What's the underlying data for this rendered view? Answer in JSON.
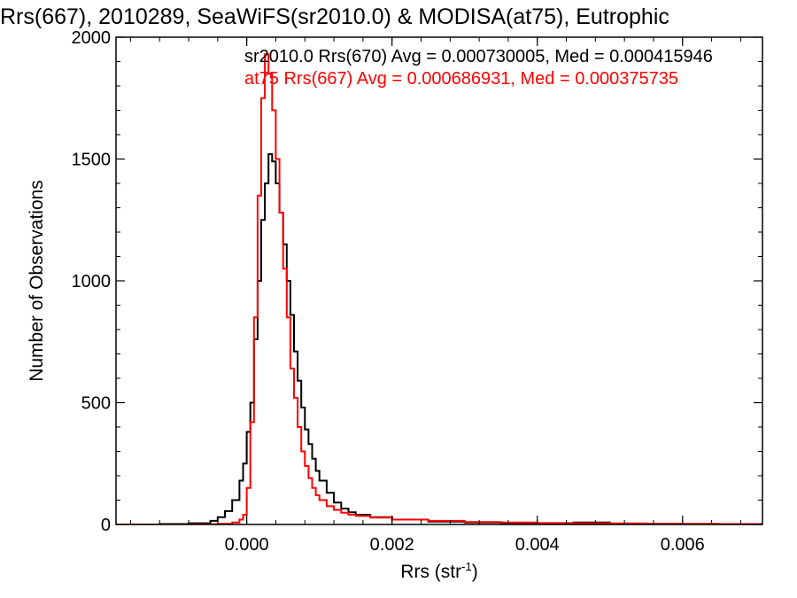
{
  "chart_data": {
    "type": "line",
    "title": "Rrs(667), 2010289, SeaWiFS(sr2010.0) & MODISA(at75), Eutrophic",
    "xlabel": "Rrs (str",
    "xlabel_sup": "-1",
    "xlabel_end": ")",
    "ylabel": "Number of Observations",
    "xlim": [
      -0.0018,
      0.0071
    ],
    "ylim": [
      0,
      2000
    ],
    "x_ticks": [
      0.0,
      0.002,
      0.004,
      0.006
    ],
    "x_tick_labels": [
      "0.000",
      "0.002",
      "0.004",
      "0.006"
    ],
    "y_ticks": [
      0,
      500,
      1000,
      1500,
      2000
    ],
    "y_tick_labels": [
      "0",
      "500",
      "1000",
      "1500",
      "2000"
    ],
    "grid": false,
    "legend_position": "top-right",
    "series": [
      {
        "name": "sr2010.0 Rrs(670)",
        "legend_text": "sr2010.0 Rrs(670) Avg = 0.000730005, Med = 0.000415946",
        "color": "#000000",
        "points": [
          [
            -0.0018,
            0
          ],
          [
            -0.0012,
            2
          ],
          [
            -0.0008,
            5
          ],
          [
            -0.0005,
            15
          ],
          [
            -0.0004,
            30
          ],
          [
            -0.0003,
            55
          ],
          [
            -0.0002,
            100
          ],
          [
            -0.0001,
            180
          ],
          [
            -5e-05,
            250
          ],
          [
            0.0,
            380
          ],
          [
            5e-05,
            500
          ],
          [
            0.0001,
            760
          ],
          [
            0.00015,
            1000
          ],
          [
            0.0002,
            1250
          ],
          [
            0.00025,
            1400
          ],
          [
            0.0003,
            1520
          ],
          [
            0.00035,
            1490
          ],
          [
            0.0004,
            1400
          ],
          [
            0.00045,
            1280
          ],
          [
            0.0005,
            1150
          ],
          [
            0.00055,
            1000
          ],
          [
            0.0006,
            860
          ],
          [
            0.00065,
            710
          ],
          [
            0.0007,
            590
          ],
          [
            0.00075,
            480
          ],
          [
            0.0008,
            390
          ],
          [
            0.00085,
            330
          ],
          [
            0.0009,
            270
          ],
          [
            0.00095,
            220
          ],
          [
            0.001,
            180
          ],
          [
            0.0011,
            130
          ],
          [
            0.0012,
            90
          ],
          [
            0.0013,
            65
          ],
          [
            0.0014,
            50
          ],
          [
            0.0015,
            40
          ],
          [
            0.0017,
            30
          ],
          [
            0.002,
            20
          ],
          [
            0.0025,
            12
          ],
          [
            0.003,
            8
          ],
          [
            0.0035,
            6
          ],
          [
            0.004,
            5
          ],
          [
            0.0045,
            8
          ],
          [
            0.005,
            4
          ],
          [
            0.0055,
            3
          ],
          [
            0.006,
            2
          ],
          [
            0.0065,
            2
          ],
          [
            0.0071,
            1
          ]
        ]
      },
      {
        "name": "at75 Rrs(667)",
        "legend_text": "at75 Rrs(667) Avg = 0.000686931, Med = 0.000375735",
        "color": "#ff0000",
        "points": [
          [
            -0.0018,
            0
          ],
          [
            -0.0008,
            1
          ],
          [
            -0.0004,
            3
          ],
          [
            -0.0002,
            8
          ],
          [
            -0.0001,
            20
          ],
          [
            -5e-05,
            40
          ],
          [
            0.0,
            150
          ],
          [
            5e-05,
            420
          ],
          [
            0.0001,
            850
          ],
          [
            0.00015,
            1350
          ],
          [
            0.0002,
            1750
          ],
          [
            0.00025,
            1930
          ],
          [
            0.0003,
            1850
          ],
          [
            0.00035,
            1700
          ],
          [
            0.0004,
            1500
          ],
          [
            0.00045,
            1280
          ],
          [
            0.0005,
            1050
          ],
          [
            0.00055,
            850
          ],
          [
            0.0006,
            640
          ],
          [
            0.00065,
            520
          ],
          [
            0.0007,
            400
          ],
          [
            0.00075,
            300
          ],
          [
            0.0008,
            240
          ],
          [
            0.00085,
            190
          ],
          [
            0.0009,
            150
          ],
          [
            0.00095,
            120
          ],
          [
            0.001,
            100
          ],
          [
            0.0011,
            75
          ],
          [
            0.0012,
            60
          ],
          [
            0.0013,
            48
          ],
          [
            0.0014,
            40
          ],
          [
            0.0015,
            35
          ],
          [
            0.0017,
            28
          ],
          [
            0.002,
            20
          ],
          [
            0.0025,
            15
          ],
          [
            0.003,
            10
          ],
          [
            0.0035,
            8
          ],
          [
            0.004,
            6
          ],
          [
            0.0045,
            5
          ],
          [
            0.005,
            4
          ],
          [
            0.0055,
            3
          ],
          [
            0.006,
            3
          ],
          [
            0.0065,
            2
          ],
          [
            0.0071,
            1
          ]
        ]
      }
    ]
  }
}
